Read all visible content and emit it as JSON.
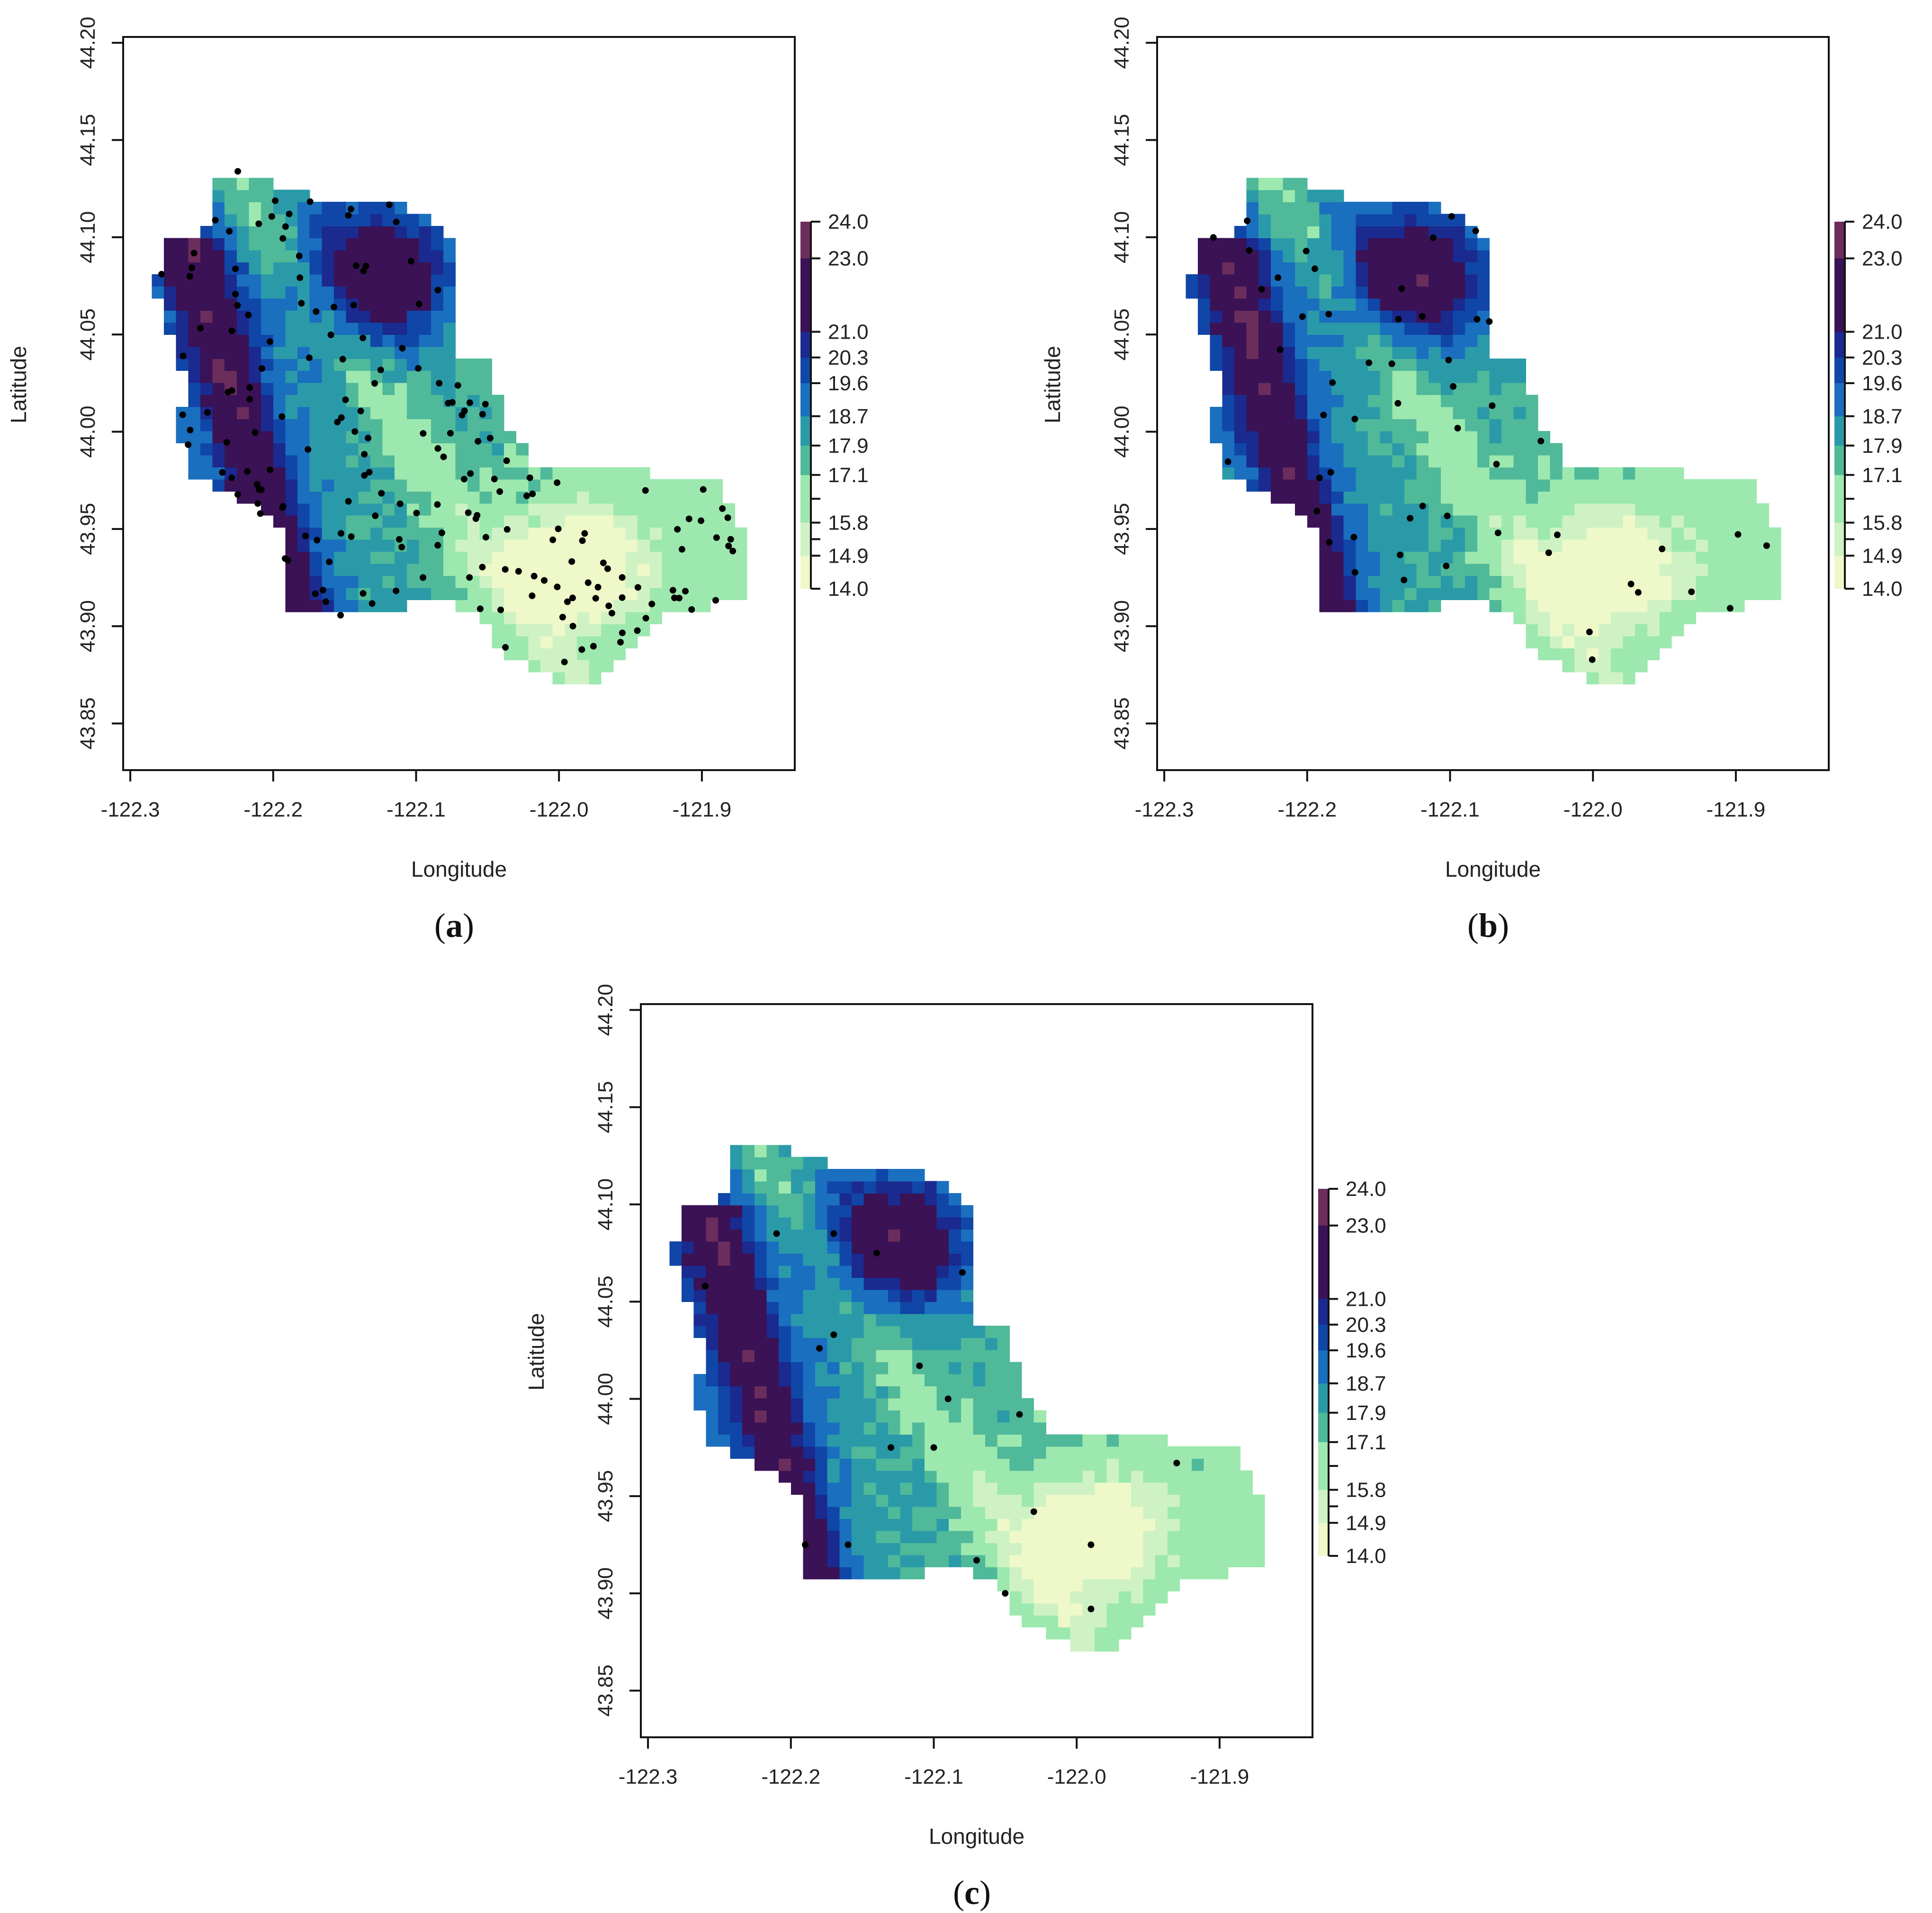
{
  "figure": {
    "x_axis_label": "Longitude",
    "y_axis_label": "Latitude",
    "x_ticks": [
      "-122.3",
      "-122.2",
      "-122.1",
      "-122.0",
      "-121.9"
    ],
    "y_ticks": [
      "43.85",
      "43.90",
      "43.95",
      "44.00",
      "44.05",
      "44.10",
      "44.15",
      "44.20"
    ],
    "x_range": [
      -122.3,
      -121.83
    ],
    "y_range": [
      43.83,
      44.2
    ],
    "colorbar_ticks": [
      "14.0",
      "14.9",
      "15.8",
      "17.1",
      "17.9",
      "18.7",
      "19.6",
      "20.3",
      "21.0",
      "23.0",
      "24.0"
    ],
    "color_classes": [
      {
        "range": [
          14.0,
          14.9
        ],
        "color": "#eef8c8"
      },
      {
        "range": [
          14.9,
          15.8
        ],
        "color": "#cff2c4"
      },
      {
        "range": [
          15.8,
          17.1
        ],
        "color": "#9de8ae"
      },
      {
        "range": [
          17.1,
          17.9
        ],
        "color": "#4fb99a"
      },
      {
        "range": [
          17.9,
          18.7
        ],
        "color": "#2b9aa8"
      },
      {
        "range": [
          18.7,
          19.6
        ],
        "color": "#1a6fbf"
      },
      {
        "range": [
          19.6,
          20.3
        ],
        "color": "#1046a8"
      },
      {
        "range": [
          20.3,
          21.0
        ],
        "color": "#1a2a8e"
      },
      {
        "range": [
          21.0,
          23.0
        ],
        "color": "#3a1255"
      },
      {
        "range": [
          23.0,
          24.0
        ],
        "color": "#6b2d5c"
      }
    ]
  },
  "panels": [
    {
      "id": "a",
      "caption_open": "(",
      "caption_letter": "a",
      "caption_close": ")",
      "sample_points": "dense"
    },
    {
      "id": "b",
      "caption_open": "(",
      "caption_letter": "b",
      "caption_close": ")",
      "sample_points": "medium"
    },
    {
      "id": "c",
      "caption_open": "(",
      "caption_letter": "c",
      "caption_close": ")",
      "sample_points": "sparse"
    }
  ],
  "chart_data": [
    {
      "type": "heatmap",
      "panel": "a",
      "xlabel": "Longitude",
      "ylabel": "Latitude",
      "xlim": [
        -122.3,
        -121.83
      ],
      "ylim": [
        43.83,
        44.2
      ],
      "colorbar": [
        14.0,
        14.9,
        15.8,
        17.1,
        17.9,
        18.7,
        19.6,
        20.3,
        21.0,
        23.0,
        24.0
      ],
      "value_range": [
        14.0,
        24.0
      ]
    },
    {
      "type": "heatmap",
      "panel": "b",
      "xlabel": "Longitude",
      "ylabel": "Latitude",
      "xlim": [
        -122.3,
        -121.83
      ],
      "ylim": [
        43.83,
        44.2
      ],
      "colorbar": [
        14.0,
        14.9,
        15.8,
        17.1,
        17.9,
        18.7,
        19.6,
        20.3,
        21.0,
        23.0,
        24.0
      ],
      "value_range": [
        14.0,
        24.0
      ]
    },
    {
      "type": "heatmap",
      "panel": "c",
      "xlabel": "Longitude",
      "ylabel": "Latitude",
      "xlim": [
        -122.3,
        -121.83
      ],
      "ylim": [
        43.83,
        44.2
      ],
      "colorbar": [
        14.0,
        14.9,
        15.8,
        17.1,
        17.9,
        18.7,
        19.6,
        20.3,
        21.0,
        23.0,
        24.0
      ],
      "value_range": [
        14.0,
        24.0
      ],
      "sample_points": [
        [
          -122.21,
          44.085
        ],
        [
          -122.17,
          44.085
        ],
        [
          -122.14,
          44.075
        ],
        [
          -122.08,
          44.065
        ],
        [
          -122.26,
          44.058
        ],
        [
          -122.17,
          44.033
        ],
        [
          -122.18,
          44.026
        ],
        [
          -122.11,
          44.017
        ],
        [
          -122.09,
          44.0
        ],
        [
          -122.04,
          43.992
        ],
        [
          -122.13,
          43.975
        ],
        [
          -122.1,
          43.975
        ],
        [
          -121.93,
          43.967
        ],
        [
          -122.03,
          43.942
        ],
        [
          -122.19,
          43.925
        ],
        [
          -122.16,
          43.925
        ],
        [
          -121.99,
          43.925
        ],
        [
          -122.07,
          43.917
        ],
        [
          -122.05,
          43.9
        ],
        [
          -121.99,
          43.892
        ]
      ]
    }
  ]
}
